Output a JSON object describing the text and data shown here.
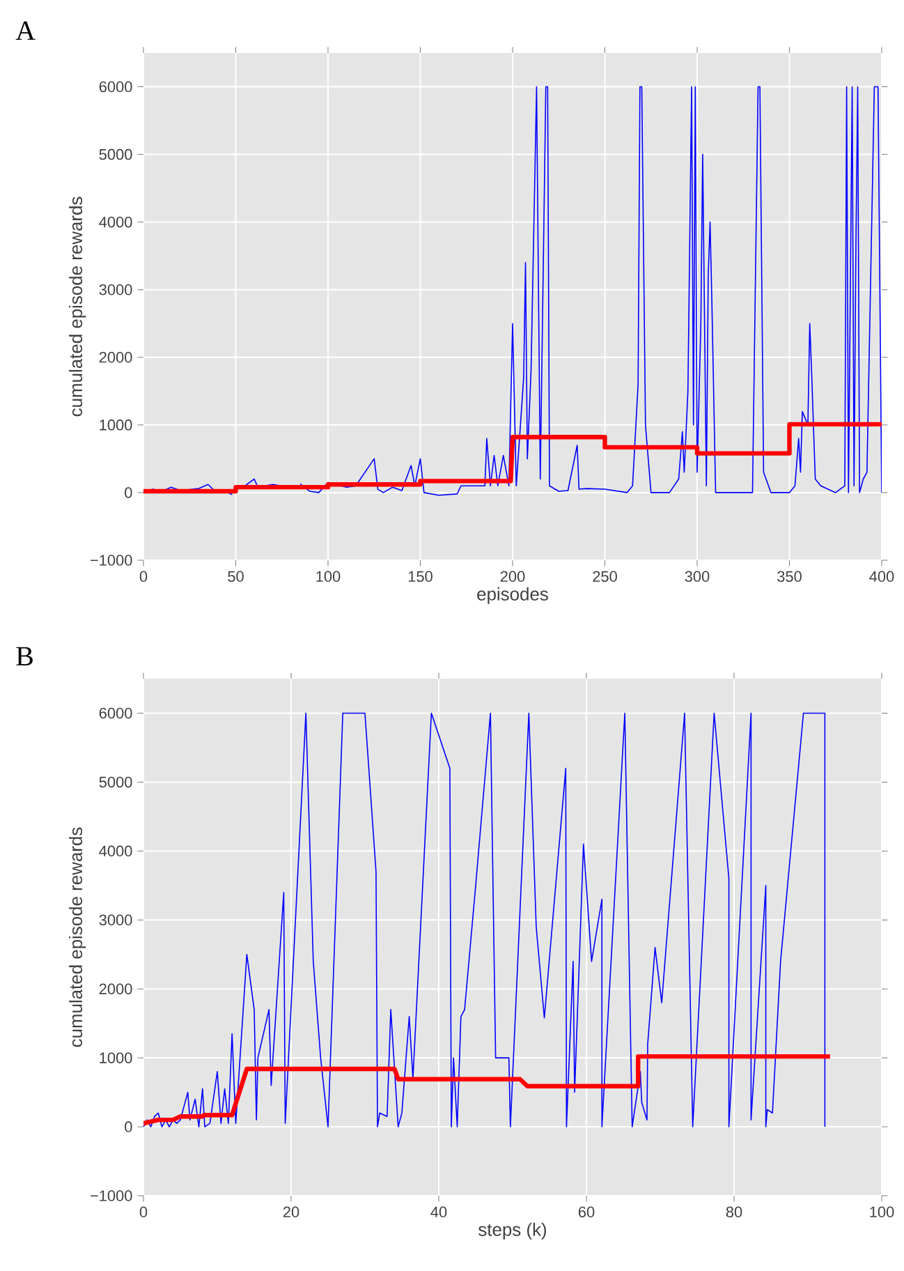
{
  "chart_data": [
    {
      "type": "line",
      "title": "A",
      "xlabel": "episodes",
      "ylabel": "cumulated episode rewards",
      "xlim": [
        0,
        400
      ],
      "ylim": [
        -1000,
        6500
      ],
      "xticks": [
        0,
        50,
        100,
        150,
        200,
        250,
        300,
        350,
        400
      ],
      "yticks": [
        {
          "value": -1000,
          "label": "−1000"
        },
        0,
        1000,
        2000,
        3000,
        4000,
        5000,
        6000
      ],
      "grid": true,
      "series": [
        {
          "color": "#0000ff",
          "x": [
            0,
            5,
            10,
            15,
            20,
            30,
            35,
            38,
            45,
            48,
            50,
            55,
            60,
            62,
            70,
            75,
            80,
            85,
            90,
            95,
            100,
            110,
            115,
            125,
            127,
            130,
            135,
            140,
            145,
            147,
            150,
            152,
            160,
            170,
            172,
            185,
            186,
            188,
            190,
            192,
            195,
            198,
            199,
            200,
            202,
            206,
            207,
            208,
            210,
            213,
            215,
            218,
            219,
            220,
            225,
            230,
            235,
            236,
            240,
            250,
            262,
            265,
            268,
            269,
            270,
            272,
            275,
            285,
            290,
            292,
            293,
            295,
            297,
            298,
            299,
            300,
            302,
            303,
            305,
            306,
            307,
            308,
            310,
            320,
            330,
            333,
            334,
            336,
            340,
            350,
            353,
            355,
            356,
            357,
            360,
            361,
            362,
            364,
            367,
            375,
            380,
            381,
            382,
            384,
            385,
            386,
            387,
            388,
            390,
            392,
            396,
            398,
            400
          ],
          "values": [
            0,
            50,
            20,
            80,
            30,
            60,
            120,
            40,
            10,
            -30,
            null,
            100,
            200,
            80,
            120,
            100,
            null,
            130,
            20,
            0,
            150,
            80,
            100,
            500,
            50,
            0,
            80,
            30,
            400,
            100,
            500,
            0,
            -40,
            -20,
            100,
            100,
            800,
            100,
            550,
            100,
            550,
            100,
            1300,
            2500,
            100,
            1700,
            3400,
            500,
            1800,
            6000,
            200,
            6000,
            6000,
            100,
            20,
            30,
            700,
            50,
            60,
            50,
            0,
            100,
            1600,
            6000,
            6000,
            1000,
            0,
            0,
            200,
            900,
            300,
            1500,
            6000,
            1000,
            6000,
            300,
            2500,
            5000,
            100,
            3200,
            4000,
            2800,
            0,
            0,
            0,
            6000,
            6000,
            300,
            0,
            0,
            100,
            800,
            300,
            1200,
            1000,
            2500,
            1800,
            200,
            100,
            0,
            100,
            6000,
            0,
            6000,
            100,
            3600,
            6000,
            0,
            200,
            300,
            6000,
            6000,
            0
          ]
        },
        {
          "color": "#ff0000",
          "x": [
            0,
            50,
            50,
            100,
            100,
            150,
            150,
            199,
            200,
            250,
            250,
            300,
            300,
            350,
            350,
            400
          ],
          "values": [
            20,
            20,
            80,
            80,
            120,
            120,
            170,
            170,
            820,
            820,
            670,
            670,
            580,
            580,
            1010,
            1010
          ]
        }
      ]
    },
    {
      "type": "line",
      "title": "B",
      "xlabel": "steps (k)",
      "ylabel": "cumulated episode rewards",
      "xlim": [
        0,
        100
      ],
      "ylim": [
        -1000,
        6500
      ],
      "xticks": [
        0,
        20,
        40,
        60,
        80,
        100
      ],
      "yticks": [
        {
          "value": -1000,
          "label": "−1000"
        },
        0,
        1000,
        2000,
        3000,
        4000,
        5000,
        6000
      ],
      "grid": true,
      "series": [
        {
          "color": "#0000ff",
          "x": [
            0,
            0.5,
            1,
            1.5,
            2,
            2.5,
            3,
            3.5,
            4,
            4.5,
            5,
            6,
            6.3,
            7,
            7.5,
            8,
            8.3,
            9,
            10,
            10.5,
            11,
            11.5,
            12,
            12.5,
            14,
            15,
            15.3,
            15.5,
            17,
            17.3,
            19,
            19.2,
            22,
            23,
            24,
            25,
            27,
            30,
            31.5,
            31.7,
            32,
            33,
            33.5,
            34.5,
            35,
            36,
            36.5,
            39,
            41.5,
            41.7,
            42,
            42.5,
            43,
            43.5,
            45,
            47,
            47.7,
            49.5,
            49.7,
            52.2,
            53.2,
            54.3,
            57.2,
            57.3,
            58.2,
            58.4,
            59.6,
            60.7,
            62.1,
            62.1,
            65.2,
            66.2,
            67.3,
            67.5,
            68.2,
            68.3,
            69.3,
            70.2,
            73.3,
            74.4,
            77.3,
            79.3,
            79.3,
            82.3,
            82.3,
            84.3,
            84.3,
            84.5,
            85.2,
            86.3,
            89.4,
            92.3,
            92.3
          ],
          "values": [
            0,
            100,
            0,
            150,
            200,
            0,
            100,
            0,
            100,
            50,
            100,
            500,
            100,
            400,
            0,
            550,
            0,
            50,
            800,
            50,
            550,
            50,
            1350,
            50,
            2500,
            1700,
            100,
            1000,
            1700,
            600,
            3400,
            50,
            6000,
            2400,
            1000,
            0,
            6000,
            6000,
            3700,
            0,
            200,
            150,
            1700,
            0,
            200,
            1600,
            700,
            6000,
            5200,
            0,
            1000,
            0,
            1600,
            1700,
            3500,
            6000,
            1000,
            1000,
            0,
            6000,
            2900,
            1580,
            5200,
            0,
            2400,
            500,
            4100,
            2400,
            3300,
            0,
            6000,
            0,
            800,
            350,
            100,
            1200,
            2600,
            1800,
            6000,
            0,
            6000,
            3600,
            0,
            6000,
            100,
            3500,
            0,
            250,
            200,
            2400,
            6000,
            6000,
            0
          ]
        },
        {
          "color": "#ff0000",
          "x": [
            0,
            2,
            4,
            5,
            8,
            8.2,
            12,
            14,
            34,
            34.5,
            51,
            52,
            67,
            67,
            93
          ],
          "values": [
            50,
            100,
            100,
            150,
            150,
            170,
            170,
            840,
            840,
            690,
            690,
            590,
            590,
            1020,
            1020
          ]
        }
      ]
    }
  ]
}
